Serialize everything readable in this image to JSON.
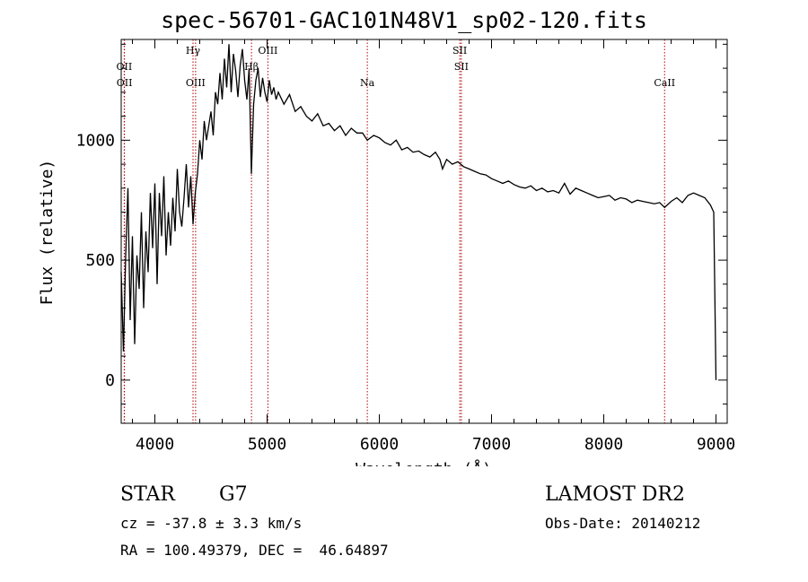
{
  "title": "spec-56701-GAC101N48V1_sp02-120.fits",
  "info": {
    "class": "STAR",
    "subclass": "G7",
    "survey": "LAMOST DR2",
    "cz": "cz = -37.8 ± 3.3 km/s",
    "obs_date": "Obs-Date: 20140212",
    "radec": "RA = 100.49379, DEC =  46.64897"
  },
  "colors": {
    "spectrum": "#000000",
    "line_marker": "#b00000",
    "axes": "#000000"
  },
  "chart_data": {
    "type": "line",
    "xlabel": "Wavelength (Å)",
    "ylabel": "Flux (relative)",
    "xlim": [
      3700,
      9100
    ],
    "ylim": [
      -180,
      1420
    ],
    "xticks": [
      4000,
      5000,
      6000,
      7000,
      8000,
      9000
    ],
    "yticks": [
      0,
      500,
      1000
    ],
    "grid": false,
    "line_markers": [
      {
        "label": "OII",
        "wavelength": 3727,
        "row": 1
      },
      {
        "label": "OII",
        "wavelength": 3729,
        "row": 2
      },
      {
        "label": "Hγ",
        "wavelength": 4340,
        "row": 0
      },
      {
        "label": "OIII",
        "wavelength": 4363,
        "row": 2
      },
      {
        "label": "Hβ",
        "wavelength": 4861,
        "row": 1
      },
      {
        "label": "OIII",
        "wavelength": 5007,
        "row": 0
      },
      {
        "label": "Na",
        "wavelength": 5893,
        "row": 2
      },
      {
        "label": "SII",
        "wavelength": 6717,
        "row": 0
      },
      {
        "label": "SII",
        "wavelength": 6731,
        "row": 1
      },
      {
        "label": "CaII",
        "wavelength": 8542,
        "row": 2
      }
    ],
    "series": [
      {
        "x": [
          3700,
          3720,
          3740,
          3760,
          3780,
          3800,
          3820,
          3840,
          3860,
          3880,
          3900,
          3920,
          3940,
          3960,
          3980,
          4000,
          4020,
          4040,
          4060,
          4080,
          4100,
          4120,
          4140,
          4160,
          4180,
          4200,
          4220,
          4240,
          4260,
          4280,
          4300,
          4320,
          4340,
          4360,
          4380,
          4400,
          4420,
          4440,
          4460,
          4480,
          4500,
          4520,
          4540,
          4560,
          4580,
          4600,
          4620,
          4640,
          4660,
          4680,
          4700,
          4720,
          4740,
          4760,
          4780,
          4800,
          4820,
          4840,
          4860,
          4880,
          4900,
          4920,
          4940,
          4960,
          4980,
          5000,
          5020,
          5040,
          5060,
          5080,
          5100,
          5150,
          5200,
          5250,
          5300,
          5350,
          5400,
          5450,
          5500,
          5550,
          5600,
          5650,
          5700,
          5750,
          5800,
          5850,
          5893,
          5950,
          6000,
          6050,
          6100,
          6150,
          6200,
          6250,
          6300,
          6350,
          6400,
          6450,
          6500,
          6540,
          6563,
          6600,
          6650,
          6700,
          6750,
          6800,
          6850,
          6900,
          6950,
          7000,
          7050,
          7100,
          7150,
          7200,
          7250,
          7300,
          7350,
          7400,
          7450,
          7500,
          7550,
          7600,
          7650,
          7700,
          7750,
          7800,
          7850,
          7900,
          7950,
          8000,
          8050,
          8100,
          8150,
          8200,
          8250,
          8300,
          8350,
          8400,
          8450,
          8498,
          8542,
          8600,
          8650,
          8700,
          8750,
          8800,
          8850,
          8900,
          8950,
          8980,
          9000
        ],
        "y": [
          450,
          120,
          520,
          800,
          250,
          600,
          150,
          520,
          380,
          700,
          300,
          620,
          450,
          780,
          550,
          820,
          400,
          780,
          600,
          850,
          520,
          700,
          560,
          760,
          620,
          880,
          700,
          640,
          760,
          900,
          720,
          850,
          650,
          780,
          860,
          1000,
          920,
          1080,
          1000,
          1060,
          1120,
          1020,
          1200,
          1150,
          1280,
          1170,
          1340,
          1220,
          1400,
          1200,
          1360,
          1290,
          1180,
          1310,
          1380,
          1250,
          1170,
          1300,
          860,
          1150,
          1250,
          1300,
          1180,
          1260,
          1200,
          1160,
          1250,
          1190,
          1220,
          1170,
          1200,
          1150,
          1190,
          1120,
          1140,
          1100,
          1080,
          1110,
          1060,
          1070,
          1040,
          1060,
          1020,
          1050,
          1030,
          1030,
          1000,
          1020,
          1010,
          990,
          980,
          1000,
          960,
          970,
          950,
          955,
          940,
          930,
          950,
          920,
          880,
          920,
          900,
          910,
          890,
          880,
          870,
          860,
          855,
          840,
          830,
          820,
          830,
          815,
          805,
          800,
          810,
          790,
          800,
          785,
          790,
          780,
          820,
          775,
          800,
          790,
          780,
          770,
          760,
          765,
          770,
          750,
          760,
          755,
          740,
          750,
          745,
          740,
          735,
          740,
          720,
          745,
          760,
          740,
          770,
          780,
          770,
          760,
          730,
          700,
          0
        ]
      }
    ]
  }
}
